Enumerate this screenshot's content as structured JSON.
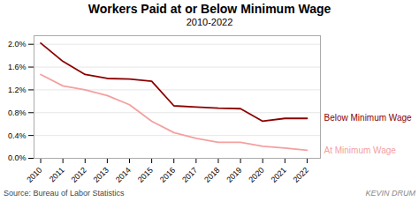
{
  "chart_data": {
    "type": "line",
    "title": "Workers Paid at or Below Minimum Wage",
    "subtitle": "2010-2022",
    "caption": "Source: Bureau of Labor Statistics",
    "annotations": [
      "KEVIN DRUM"
    ],
    "x": [
      2010,
      2011,
      2012,
      2013,
      2014,
      2015,
      2016,
      2017,
      2018,
      2019,
      2020,
      2021,
      2022
    ],
    "series": [
      {
        "name": "Below Minimum Wage",
        "color": "#8B0000",
        "values": [
          2.02,
          1.7,
          1.47,
          1.4,
          1.39,
          1.35,
          0.92,
          0.9,
          0.88,
          0.87,
          0.65,
          0.7,
          0.7
        ]
      },
      {
        "name": "At Minimum Wage",
        "color": "#F4A0A0",
        "values": [
          1.47,
          1.27,
          1.2,
          1.1,
          0.94,
          0.65,
          0.45,
          0.35,
          0.28,
          0.28,
          0.21,
          0.18,
          0.14
        ]
      }
    ],
    "xlim": [
      2009.7,
      2022.6
    ],
    "xticks": [
      2010,
      2011,
      2012,
      2013,
      2014,
      2015,
      2016,
      2017,
      2018,
      2019,
      2020,
      2021,
      2022
    ],
    "ylim": [
      0.0,
      2.15
    ],
    "yticks": [
      {
        "value": 0.0,
        "label": "0.0%"
      },
      {
        "value": 0.4,
        "label": "0.4%"
      },
      {
        "value": 0.8,
        "label": "0.8%"
      },
      {
        "value": 1.2,
        "label": "1.2%"
      },
      {
        "value": 1.6,
        "label": "1.6%"
      },
      {
        "value": 2.0,
        "label": "2.0%"
      }
    ],
    "grid": true
  }
}
